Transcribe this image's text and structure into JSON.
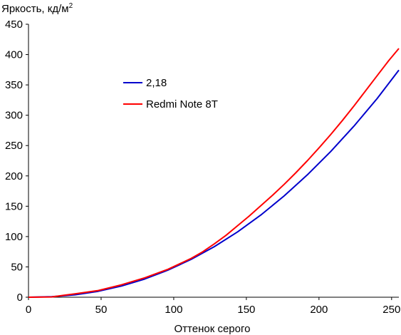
{
  "chart_data": {
    "type": "line",
    "ylabel": "Яркость, кд/м",
    "ylabel_sup": "2",
    "xlabel": "Оттенок серого",
    "xlim": [
      0,
      255
    ],
    "ylim": [
      0,
      450
    ],
    "xticks": [
      0,
      50,
      100,
      150,
      200,
      250
    ],
    "yticks": [
      0,
      50,
      100,
      150,
      200,
      250,
      300,
      350,
      400,
      450
    ],
    "grid": false,
    "legend": "upper-left",
    "series": [
      {
        "name": "2,18",
        "color": "#0000cc",
        "x": [
          0,
          16,
          32,
          48,
          64,
          80,
          96,
          112,
          128,
          144,
          160,
          176,
          192,
          208,
          224,
          240,
          255
        ],
        "y": [
          0,
          0.8,
          4.0,
          9.8,
          18.4,
          30.0,
          44.6,
          62.4,
          83.4,
          107.8,
          135.6,
          166.9,
          201.7,
          240.0,
          281.9,
          327.3,
          374.3
        ]
      },
      {
        "name": "Redmi Note 8T",
        "color": "#ff0000",
        "x": [
          0,
          16,
          24,
          32,
          48,
          64,
          80,
          96,
          104,
          112,
          120,
          128,
          136,
          144,
          152,
          160,
          168,
          176,
          184,
          192,
          200,
          208,
          216,
          224,
          232,
          240,
          248,
          255
        ],
        "y": [
          0,
          0.5,
          3.0,
          5.5,
          11.0,
          20.5,
          32.0,
          46.0,
          55.0,
          64.0,
          75.0,
          88.0,
          102.0,
          118.0,
          134.0,
          151.0,
          168.0,
          186.0,
          205.0,
          225.0,
          246.0,
          268.0,
          291.0,
          315.0,
          340.0,
          365.0,
          390.0,
          410.0
        ]
      }
    ]
  }
}
